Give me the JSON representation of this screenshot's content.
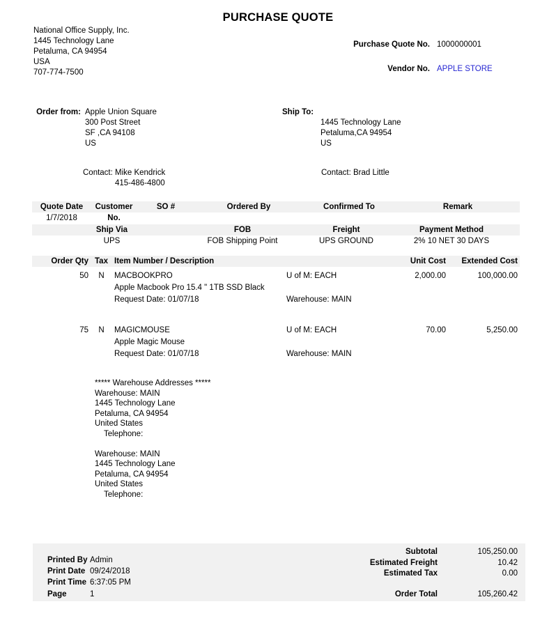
{
  "title": "PURCHASE QUOTE",
  "colors": {
    "vendor_link_blue": "#2626d2",
    "header_bar_gray": "#f1f1f1"
  },
  "company": {
    "name": "National Office Supply, Inc.",
    "address1": "1445 Technology Lane",
    "address2": "Petaluma, CA 94954",
    "country": "USA",
    "phone": "707-774-7500"
  },
  "quote_header": {
    "quote_no_label": "Purchase Quote No.",
    "quote_no": "1000000001",
    "vendor_no_label": "Vendor No.",
    "vendor_no": "APPLE STORE"
  },
  "order_from": {
    "label": "Order from:",
    "lines": [
      "Apple Union Square",
      "300 Post Street",
      "SF ,CA 94108",
      "US"
    ],
    "contact_label": "Contact:",
    "contact_name": "Mike Kendrick",
    "contact_phone": "415-486-4800"
  },
  "ship_to": {
    "label": "Ship To:",
    "lines": [
      "1445 Technology Lane",
      "Petaluma,CA 94954",
      "US"
    ],
    "contact_label": "Contact:",
    "contact_name": "Brad Little"
  },
  "info_table": {
    "headers": [
      "Quote Date",
      "Customer No.",
      "SO #",
      "Ordered By",
      "Confirmed To",
      "Remark"
    ],
    "values": [
      "1/7/2018",
      "",
      "",
      "",
      "",
      ""
    ]
  },
  "ship_table": {
    "headers": [
      "Ship Via",
      "FOB",
      "Freight",
      "Payment Method"
    ],
    "values": [
      "UPS",
      "FOB Shipping Point",
      "UPS GROUND",
      "2% 10 NET 30 DAYS"
    ]
  },
  "items_table": {
    "headers": [
      "Order Qty",
      "Tax",
      "Item Number / Description",
      "Unit Cost",
      "Extended Cost"
    ],
    "rows": [
      {
        "qty": "50",
        "tax": "N",
        "item": "MACBOOKPRO",
        "uom": "U of M: EACH",
        "unit_cost": "2,000.00",
        "extended_cost": "100,000.00",
        "description": "Apple Macbook Pro 15.4 \" 1TB SSD Black",
        "request_date": "Request Date: 01/07/18",
        "warehouse": "Warehouse: MAIN"
      },
      {
        "qty": "75",
        "tax": "N",
        "item": "MAGICMOUSE",
        "uom": "U of M: EACH",
        "unit_cost": "70.00",
        "extended_cost": "5,250.00",
        "description": "Apple Magic Mouse",
        "request_date": "Request Date: 01/07/18",
        "warehouse": "Warehouse: MAIN"
      }
    ]
  },
  "warehouse_section": {
    "heading": "***** Warehouse Addresses *****",
    "blocks": [
      {
        "lines": [
          "Warehouse: MAIN",
          "1445 Technology Lane",
          "Petaluma, CA 94954",
          "United States"
        ],
        "telephone_label": "Telephone:"
      },
      {
        "lines": [
          "Warehouse: MAIN",
          "1445 Technology Lane",
          "Petaluma, CA 94954",
          "United States"
        ],
        "telephone_label": "Telephone:"
      }
    ]
  },
  "footer": {
    "print_info": [
      {
        "label": "Printed By",
        "value": "Admin"
      },
      {
        "label": "Print Date",
        "value": "09/24/2018"
      },
      {
        "label": "Print Time",
        "value": "6:37:05 PM"
      },
      {
        "label": "Page",
        "value": "1"
      }
    ],
    "totals": [
      {
        "label": "Subtotal",
        "value": "105,250.00"
      },
      {
        "label": "Estimated Freight",
        "value": "10.42"
      },
      {
        "label": "Estimated Tax",
        "value": "0.00"
      }
    ],
    "order_total_label": "Order Total",
    "order_total_value": "105,260.42"
  }
}
